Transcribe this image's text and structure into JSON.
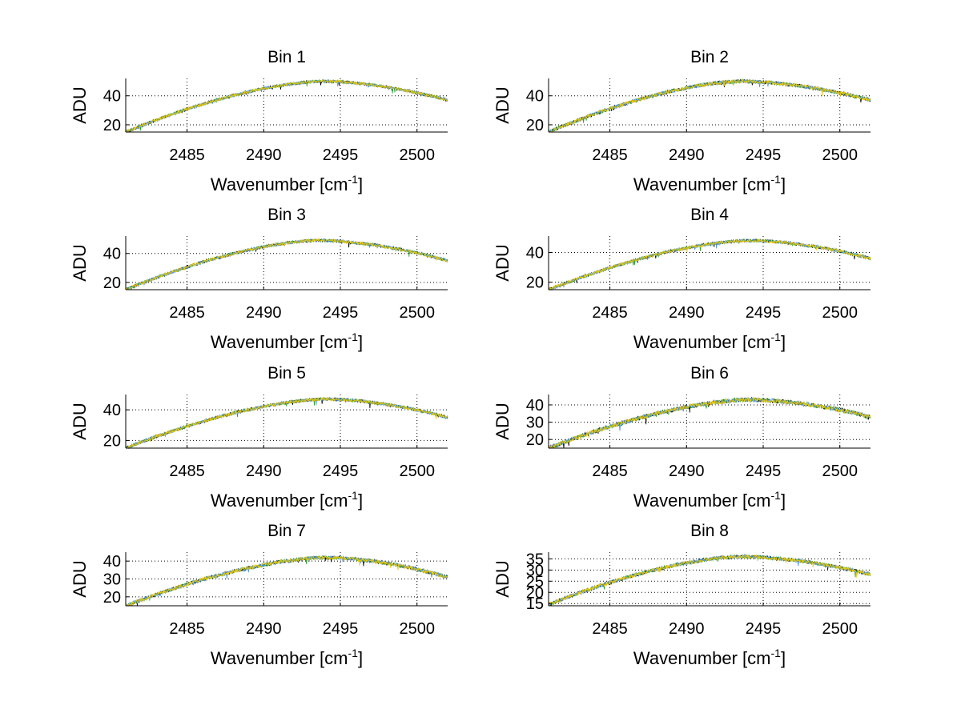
{
  "figure": {
    "background": "#ffffff",
    "grid_color": "#000000",
    "series_colors": [
      "#000000",
      "#2ca02c",
      "#4a90e2",
      "#e8c80a"
    ]
  },
  "chart_data": [
    {
      "type": "line",
      "title": "Bin 1",
      "xlabel": "Wavenumber [cm-1]",
      "xlabel_base": "Wavenumber [cm",
      "xlabel_sup": "-1",
      "xlabel_end": "]",
      "ylabel": "ADU",
      "xlim": [
        2481,
        2502
      ],
      "ylim": [
        15,
        52
      ],
      "xticks": [
        2485,
        2490,
        2495,
        2500
      ],
      "yticks": [
        20,
        40
      ],
      "grid": true,
      "profile": {
        "start": 15,
        "peak": 50,
        "peak_x": 2493.8,
        "end": 37,
        "noise": 1.0
      }
    },
    {
      "type": "line",
      "title": "Bin 2",
      "xlabel": "Wavenumber [cm-1]",
      "xlabel_base": "Wavenumber [cm",
      "xlabel_sup": "-1",
      "xlabel_end": "]",
      "ylabel": "ADU",
      "xlim": [
        2481,
        2502
      ],
      "ylim": [
        15,
        52
      ],
      "xticks": [
        2485,
        2490,
        2495,
        2500
      ],
      "yticks": [
        20,
        40
      ],
      "grid": true,
      "profile": {
        "start": 15,
        "peak": 50,
        "peak_x": 2493.5,
        "end": 37,
        "noise": 1.2
      }
    },
    {
      "type": "line",
      "title": "Bin 3",
      "xlabel": "Wavenumber [cm-1]",
      "xlabel_base": "Wavenumber [cm",
      "xlabel_sup": "-1",
      "xlabel_end": "]",
      "ylabel": "ADU",
      "xlim": [
        2481,
        2502
      ],
      "ylim": [
        15,
        52
      ],
      "xticks": [
        2485,
        2490,
        2495,
        2500
      ],
      "yticks": [
        20,
        40
      ],
      "grid": true,
      "profile": {
        "start": 15,
        "peak": 49,
        "peak_x": 2493.5,
        "end": 35,
        "noise": 1.0
      }
    },
    {
      "type": "line",
      "title": "Bin 4",
      "xlabel": "Wavenumber [cm-1]",
      "xlabel_base": "Wavenumber [cm",
      "xlabel_sup": "-1",
      "xlabel_end": "]",
      "ylabel": "ADU",
      "xlim": [
        2481,
        2502
      ],
      "ylim": [
        15,
        51
      ],
      "xticks": [
        2485,
        2490,
        2495,
        2500
      ],
      "yticks": [
        20,
        40
      ],
      "grid": true,
      "profile": {
        "start": 15,
        "peak": 48,
        "peak_x": 2494.0,
        "end": 36,
        "noise": 1.0
      }
    },
    {
      "type": "line",
      "title": "Bin 5",
      "xlabel": "Wavenumber [cm-1]",
      "xlabel_base": "Wavenumber [cm",
      "xlabel_sup": "-1",
      "xlabel_end": "]",
      "ylabel": "ADU",
      "xlim": [
        2481,
        2502
      ],
      "ylim": [
        15,
        50
      ],
      "xticks": [
        2485,
        2490,
        2495,
        2500
      ],
      "yticks": [
        20,
        40
      ],
      "grid": true,
      "profile": {
        "start": 15,
        "peak": 47,
        "peak_x": 2494.0,
        "end": 35,
        "noise": 1.0
      }
    },
    {
      "type": "line",
      "title": "Bin 6",
      "xlabel": "Wavenumber [cm-1]",
      "xlabel_base": "Wavenumber [cm",
      "xlabel_sup": "-1",
      "xlabel_end": "]",
      "ylabel": "ADU",
      "xlim": [
        2481,
        2502
      ],
      "ylim": [
        15,
        46
      ],
      "xticks": [
        2485,
        2490,
        2495,
        2500
      ],
      "yticks": [
        20,
        30,
        40
      ],
      "grid": true,
      "profile": {
        "start": 15,
        "peak": 43,
        "peak_x": 2494.0,
        "end": 33,
        "noise": 1.2
      }
    },
    {
      "type": "line",
      "title": "Bin 7",
      "xlabel": "Wavenumber [cm-1]",
      "xlabel_base": "Wavenumber [cm",
      "xlabel_sup": "-1",
      "xlabel_end": "]",
      "ylabel": "ADU",
      "xlim": [
        2481,
        2502
      ],
      "ylim": [
        15,
        45
      ],
      "xticks": [
        2485,
        2490,
        2495,
        2500
      ],
      "yticks": [
        20,
        30,
        40
      ],
      "grid": true,
      "profile": {
        "start": 15,
        "peak": 42,
        "peak_x": 2494.0,
        "end": 31,
        "noise": 1.0
      }
    },
    {
      "type": "line",
      "title": "Bin 8",
      "xlabel": "Wavenumber [cm-1]",
      "xlabel_base": "Wavenumber [cm",
      "xlabel_sup": "-1",
      "xlabel_end": "]",
      "ylabel": "ADU",
      "xlim": [
        2481,
        2502
      ],
      "ylim": [
        14,
        38
      ],
      "xticks": [
        2485,
        2490,
        2495,
        2500
      ],
      "yticks": [
        15,
        20,
        25,
        30,
        35
      ],
      "grid": true,
      "profile": {
        "start": 14.5,
        "peak": 36,
        "peak_x": 2493.5,
        "end": 28,
        "noise": 0.8
      }
    }
  ]
}
